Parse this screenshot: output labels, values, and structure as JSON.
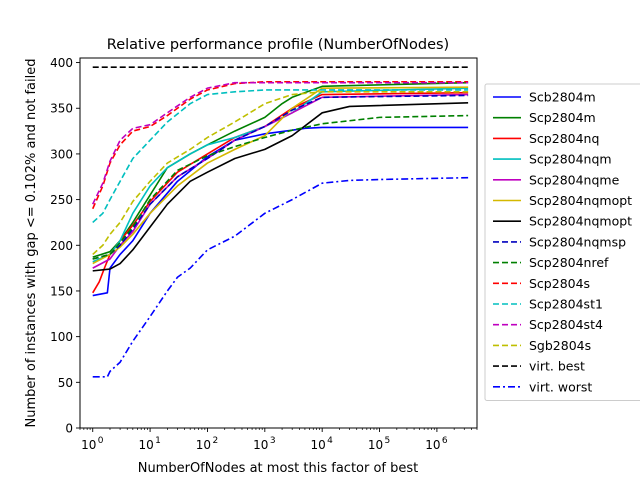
{
  "chart_data": {
    "type": "line",
    "title": "Relative performance profile (NumberOfNodes)",
    "xlabel": "NumberOfNodes at most this factor of best",
    "ylabel": "Number of instances with gap <= 0.102% and not failed",
    "xscale": "log",
    "xlim": [
      0.6,
      5000000
    ],
    "ylim": [
      0,
      405
    ],
    "xticks": [
      {
        "value": 1,
        "base": "10",
        "exp": "0"
      },
      {
        "value": 10,
        "base": "10",
        "exp": "1"
      },
      {
        "value": 100,
        "base": "10",
        "exp": "2"
      },
      {
        "value": 1000,
        "base": "10",
        "exp": "3"
      },
      {
        "value": 10000,
        "base": "10",
        "exp": "4"
      },
      {
        "value": 100000,
        "base": "10",
        "exp": "5"
      },
      {
        "value": 1000000,
        "base": "10",
        "exp": "6"
      }
    ],
    "yticks": [
      "0",
      "50",
      "100",
      "150",
      "200",
      "250",
      "300",
      "350",
      "400"
    ],
    "grid": false,
    "legend_position": "outside-right",
    "series": [
      {
        "name": "Scb2804m",
        "color": "#0000ff",
        "dash": "solid",
        "x": [
          1,
          1.8,
          2,
          3,
          5,
          10,
          30,
          100,
          300,
          1000,
          3000,
          5000,
          10000,
          3500000
        ],
        "y": [
          145,
          148,
          175,
          190,
          205,
          235,
          270,
          297,
          315,
          322,
          326,
          328,
          329,
          329
        ]
      },
      {
        "name": "Scp2804m",
        "color": "#008000",
        "dash": "solid",
        "x": [
          1,
          2,
          3,
          5,
          10,
          20,
          50,
          100,
          300,
          1000,
          2000,
          3000,
          10000,
          3500000
        ],
        "y": [
          187,
          193,
          205,
          225,
          255,
          285,
          300,
          310,
          325,
          340,
          355,
          362,
          374,
          378
        ]
      },
      {
        "name": "Scp2804nq",
        "color": "#ff0000",
        "dash": "solid",
        "x": [
          1,
          1.3,
          1.6,
          2,
          3,
          5,
          10,
          30,
          100,
          300,
          1000,
          3000,
          10000,
          3500000
        ],
        "y": [
          148,
          160,
          175,
          190,
          205,
          222,
          248,
          280,
          300,
          318,
          330,
          350,
          365,
          367
        ]
      },
      {
        "name": "Scp2804nqm",
        "color": "#00bfbf",
        "dash": "solid",
        "x": [
          1,
          2,
          3,
          5,
          10,
          20,
          50,
          100,
          300,
          1000,
          3000,
          10000,
          3500000
        ],
        "y": [
          182,
          190,
          205,
          235,
          265,
          285,
          300,
          310,
          318,
          330,
          345,
          368,
          372
        ]
      },
      {
        "name": "Scp2804nqme",
        "color": "#bf00bf",
        "dash": "solid",
        "x": [
          1,
          2,
          3,
          5,
          10,
          30,
          100,
          300,
          1000,
          3000,
          10000,
          3500000
        ],
        "y": [
          175,
          185,
          200,
          215,
          245,
          275,
          295,
          315,
          330,
          345,
          362,
          365
        ]
      },
      {
        "name": "Scp2804nqmopt",
        "color": "#d4b800",
        "dash": "solid",
        "x": [
          1,
          2,
          3,
          5,
          10,
          30,
          100,
          300,
          1000,
          3000,
          10000,
          3500000
        ],
        "y": [
          180,
          190,
          198,
          212,
          235,
          265,
          290,
          305,
          320,
          350,
          372,
          373
        ]
      },
      {
        "name": "Scp2804nqmopt",
        "color": "#000000",
        "dash": "solid",
        "x": [
          1,
          2,
          3,
          5,
          10,
          20,
          50,
          100,
          300,
          1000,
          3000,
          10000,
          30000,
          3500000
        ],
        "y": [
          172,
          174,
          180,
          195,
          220,
          245,
          270,
          280,
          295,
          305,
          320,
          345,
          352,
          356
        ]
      },
      {
        "name": "Scp2804nqmsp",
        "color": "#0000bf",
        "dash": "dashed",
        "x": [
          1,
          2,
          3,
          5,
          10,
          30,
          100,
          300,
          1000,
          3000,
          10000,
          3500000
        ],
        "y": [
          185,
          190,
          200,
          218,
          245,
          275,
          295,
          315,
          330,
          348,
          362,
          364
        ]
      },
      {
        "name": "Scp2804nref",
        "color": "#008000",
        "dash": "dashed",
        "x": [
          1,
          2,
          3,
          5,
          10,
          30,
          100,
          300,
          1000,
          3000,
          10000,
          100000,
          3500000
        ],
        "y": [
          185,
          190,
          203,
          220,
          250,
          282,
          298,
          308,
          318,
          326,
          333,
          340,
          342
        ]
      },
      {
        "name": "Scp2804s",
        "color": "#ff0000",
        "dash": "dashed",
        "x": [
          1,
          1.5,
          2,
          3,
          5,
          10,
          20,
          50,
          100,
          300,
          1000,
          3500000
        ],
        "y": [
          240,
          265,
          290,
          310,
          325,
          330,
          342,
          360,
          370,
          377,
          379,
          379
        ]
      },
      {
        "name": "Scp2804st1",
        "color": "#00bfbf",
        "dash": "dashed",
        "x": [
          1,
          1.5,
          2,
          3,
          5,
          10,
          20,
          50,
          100,
          300,
          1000,
          3500000
        ],
        "y": [
          225,
          235,
          250,
          270,
          295,
          315,
          335,
          355,
          365,
          368,
          370,
          370
        ]
      },
      {
        "name": "Scp2804st4",
        "color": "#bf00bf",
        "dash": "dashed",
        "x": [
          1,
          1.5,
          2,
          3,
          5,
          10,
          20,
          50,
          100,
          300,
          1000,
          3500000
        ],
        "y": [
          245,
          268,
          292,
          315,
          328,
          332,
          345,
          362,
          372,
          378,
          378,
          378
        ]
      },
      {
        "name": "Sgb2804s",
        "color": "#bfbf00",
        "dash": "dashed",
        "x": [
          1,
          1.5,
          2,
          3,
          5,
          10,
          20,
          50,
          100,
          300,
          1000,
          3000,
          10000,
          3500000
        ],
        "y": [
          190,
          200,
          212,
          225,
          248,
          270,
          290,
          305,
          318,
          335,
          355,
          365,
          368,
          368
        ]
      },
      {
        "name": "virt. best",
        "color": "#000000",
        "dash": "dashed",
        "x": [
          1,
          3500000
        ],
        "y": [
          395,
          395
        ]
      },
      {
        "name": "virt. worst",
        "color": "#0000ff",
        "dash": "dashdot",
        "x": [
          1,
          1.8,
          2,
          3,
          5,
          10,
          20,
          30,
          50,
          100,
          300,
          1000,
          3000,
          10000,
          30000,
          100000,
          3500000
        ],
        "y": [
          56,
          56,
          62,
          72,
          95,
          122,
          150,
          165,
          175,
          195,
          210,
          235,
          250,
          268,
          271,
          272,
          274
        ]
      }
    ]
  }
}
